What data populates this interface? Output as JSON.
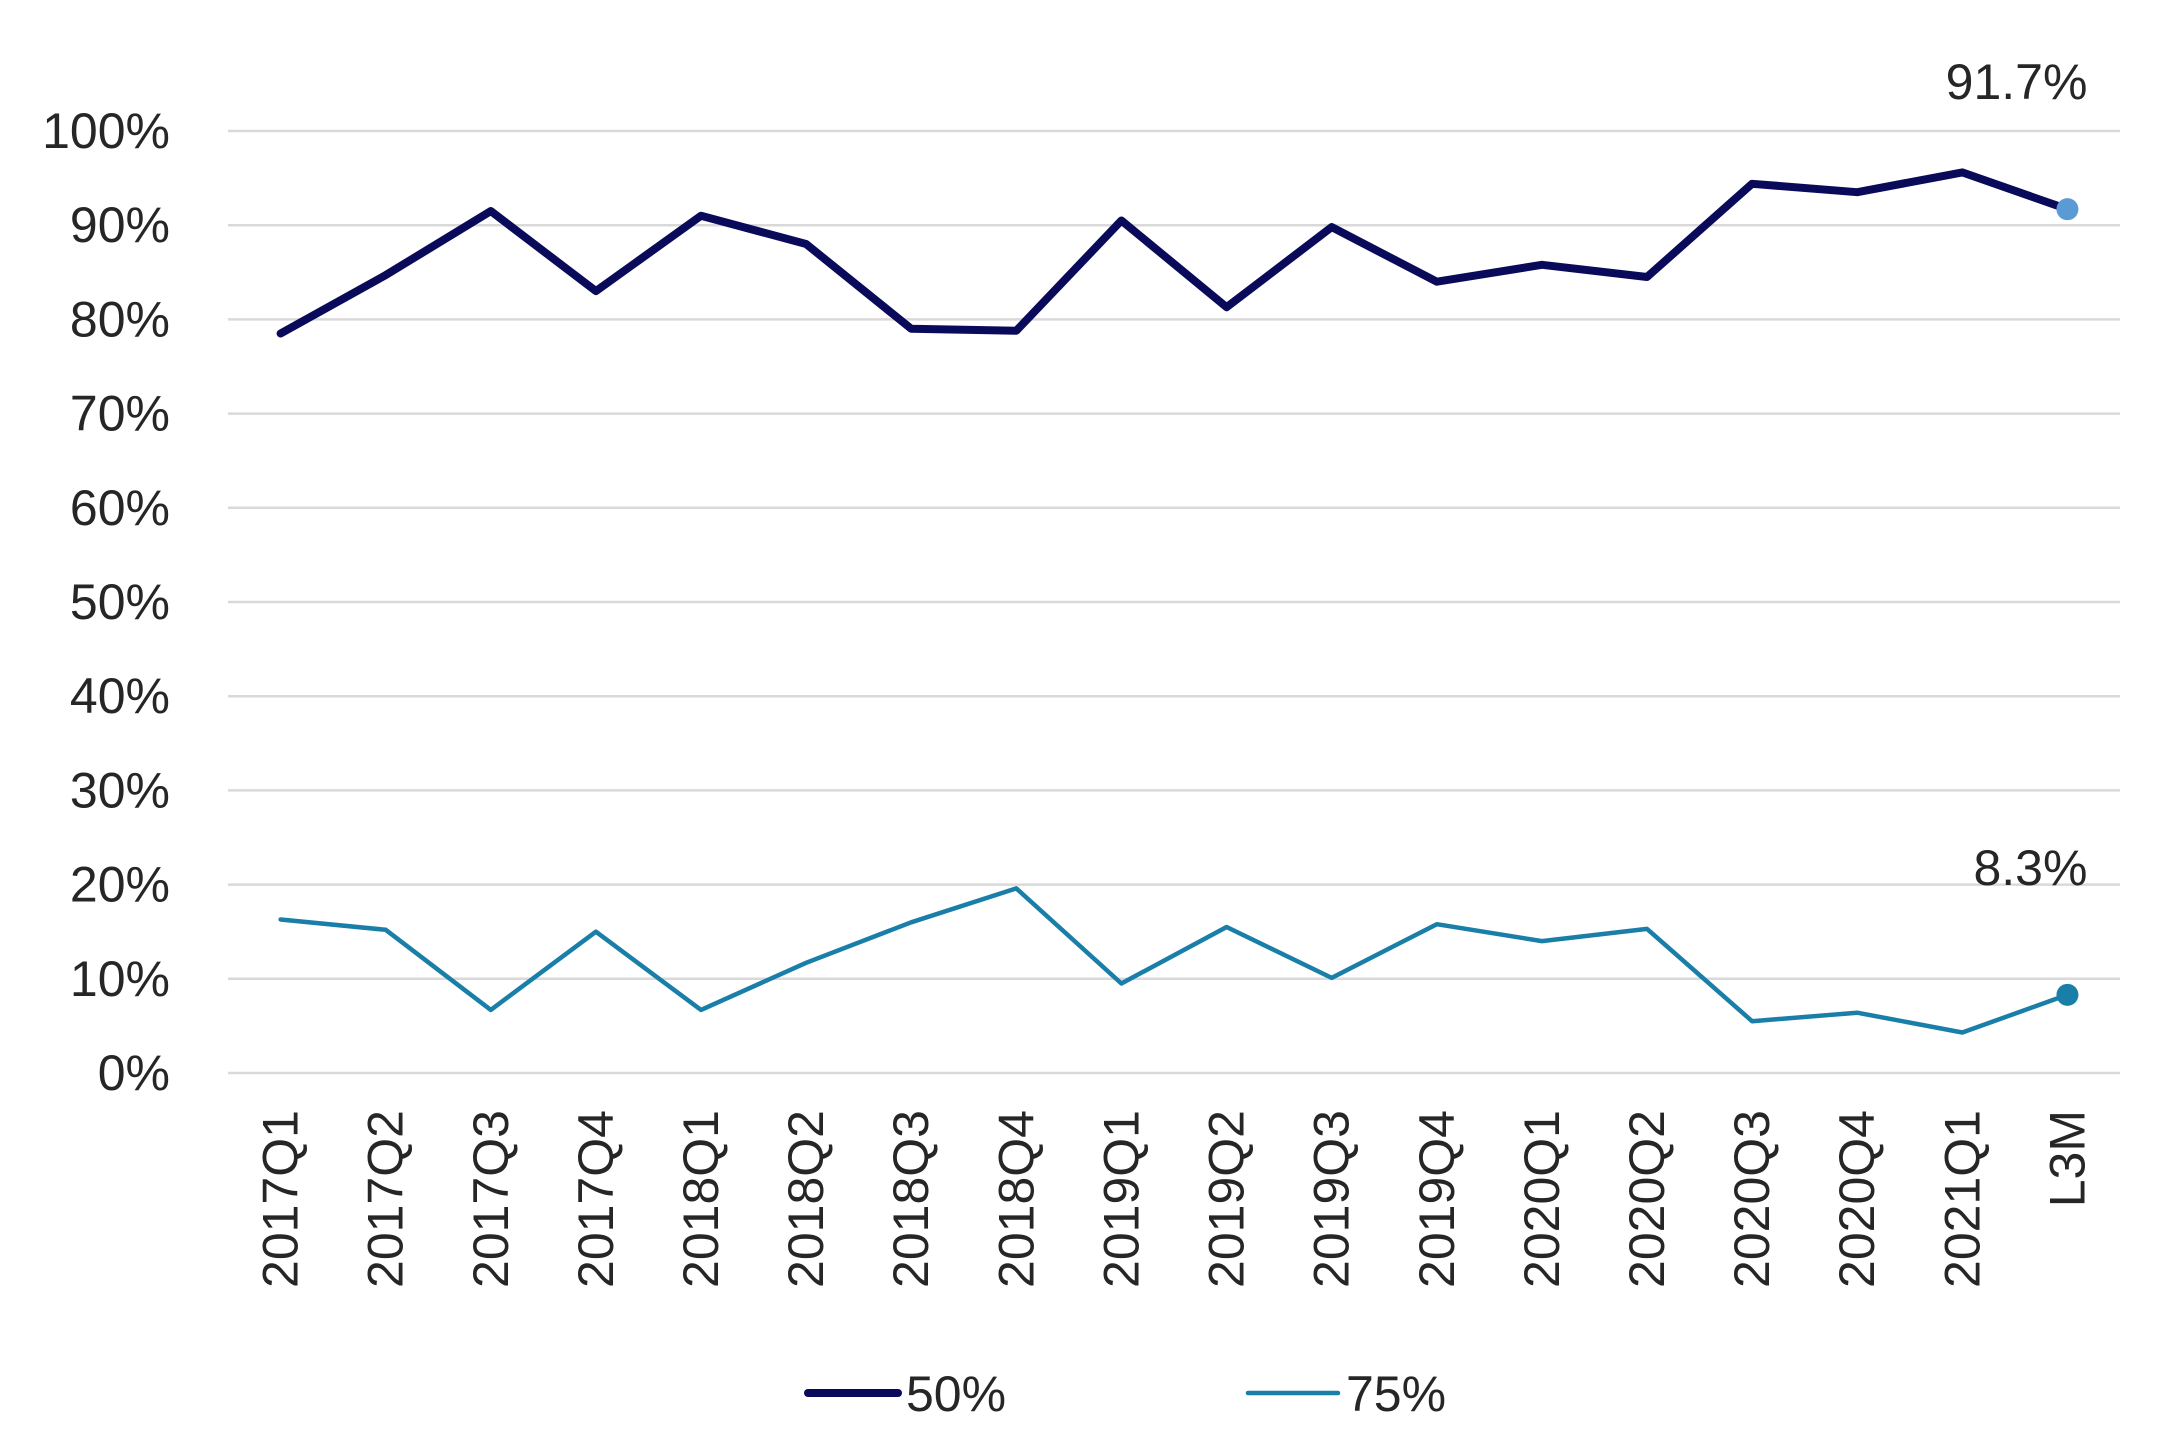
{
  "chart_data": {
    "type": "line",
    "categories": [
      "2017Q1",
      "2017Q2",
      "2017Q3",
      "2017Q4",
      "2018Q1",
      "2018Q2",
      "2018Q3",
      "2018Q4",
      "2019Q1",
      "2019Q2",
      "2019Q3",
      "2019Q4",
      "2020Q1",
      "2020Q2",
      "2020Q3",
      "2020Q4",
      "2021Q1",
      "L3M"
    ],
    "series": [
      {
        "name": "50%",
        "color": "#0a0a5a",
        "values": [
          78.5,
          84.7,
          91.5,
          83.0,
          91.0,
          88.0,
          79.0,
          78.8,
          90.5,
          81.3,
          89.8,
          84.0,
          85.8,
          84.5,
          94.4,
          93.5,
          95.6,
          91.7
        ],
        "end_marker_color": "#5b9bd5",
        "end_label": "91.7%"
      },
      {
        "name": "75%",
        "color": "#1a7fa8",
        "values": [
          16.3,
          15.2,
          6.7,
          15.0,
          6.7,
          11.7,
          16.0,
          19.6,
          9.5,
          15.5,
          10.1,
          15.8,
          14.0,
          15.3,
          5.5,
          6.4,
          4.3,
          8.3
        ],
        "end_marker_color": "#1a7fa8",
        "end_label": "8.3%"
      }
    ],
    "y_ticks": [
      "0%",
      "10%",
      "20%",
      "30%",
      "40%",
      "50%",
      "60%",
      "70%",
      "80%",
      "90%",
      "100%"
    ],
    "ylim": [
      0,
      100
    ],
    "grid": true,
    "legend_position": "bottom"
  }
}
